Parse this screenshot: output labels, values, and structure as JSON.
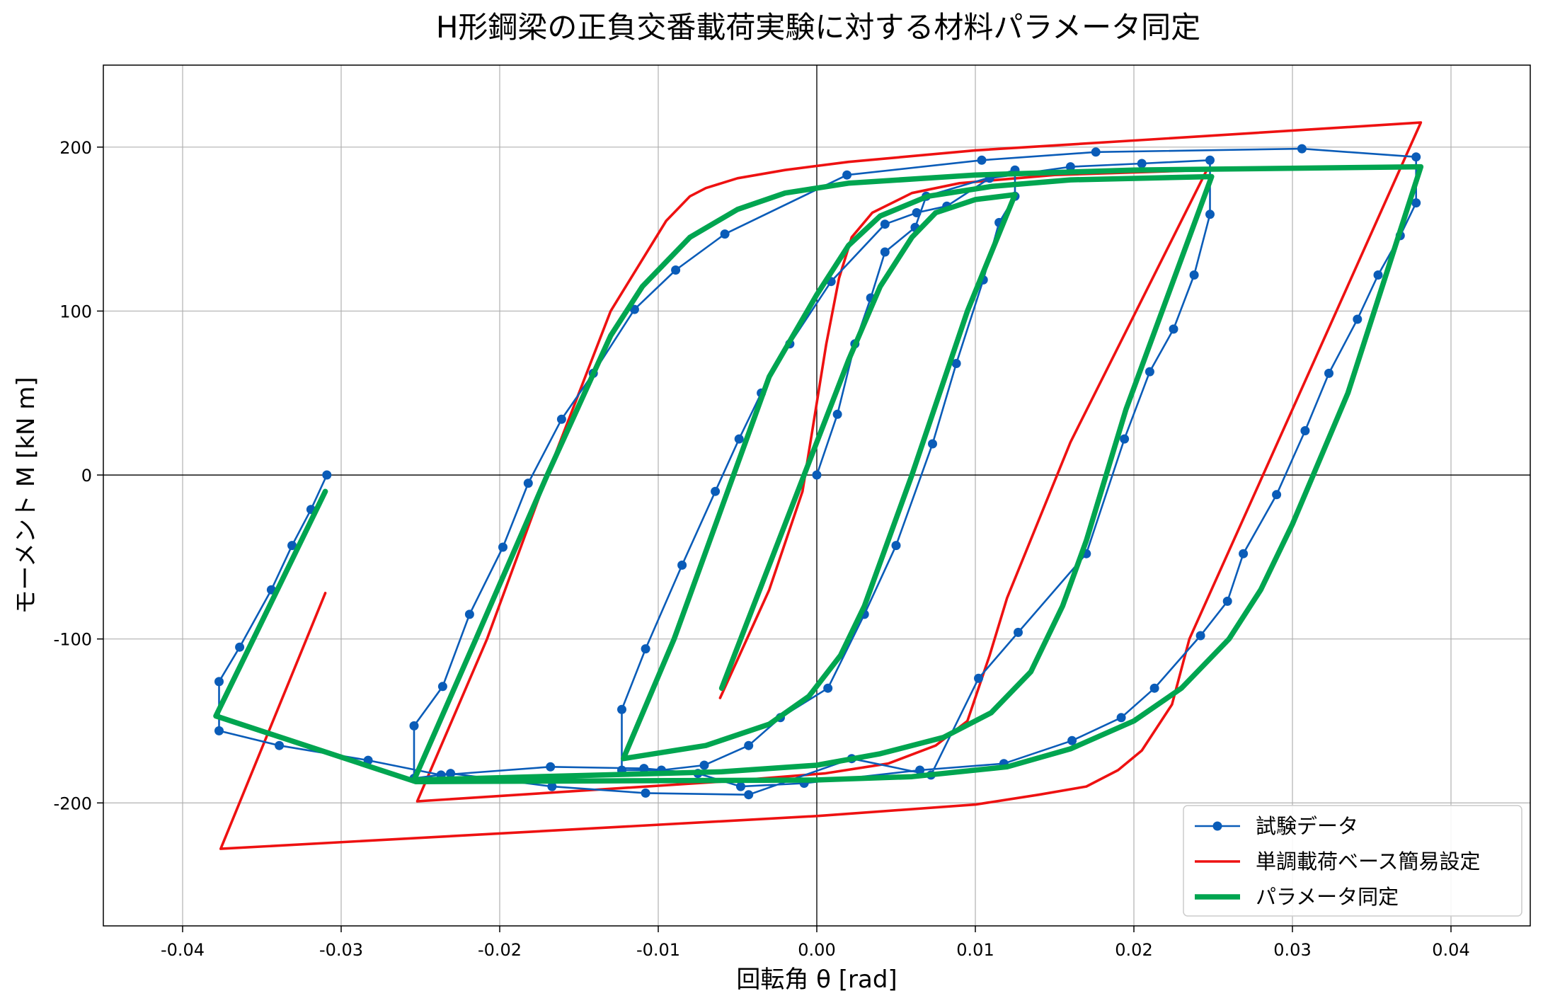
{
  "chart_data": {
    "type": "line",
    "title": "H形鋼梁の正負交番載荷実験に対する材料パラメータ同定",
    "xlabel": "回転角 θ [rad]",
    "ylabel": "モーメント M [kN m]",
    "xlim": [
      -0.045,
      0.045
    ],
    "ylim": [
      -275,
      250
    ],
    "xticks": [
      -0.04,
      -0.03,
      -0.02,
      -0.01,
      0.0,
      0.01,
      0.02,
      0.03,
      0.04
    ],
    "xtick_labels": [
      "-0.04",
      "-0.03",
      "-0.02",
      "-0.01",
      "0.00",
      "0.01",
      "0.02",
      "0.03",
      "0.04"
    ],
    "yticks": [
      -200,
      -100,
      0,
      100,
      200
    ],
    "ytick_labels": [
      "-200",
      "-100",
      "0",
      "100",
      "200"
    ],
    "grid": true,
    "legend_position": "bottom-right",
    "series": [
      {
        "name": "試験データ",
        "color": "#0a5cb8",
        "marker": "circle",
        "points": [
          [
            0.0,
            0
          ],
          [
            0.0013,
            37
          ],
          [
            0.0024,
            80
          ],
          [
            0.0034,
            108
          ],
          [
            0.0043,
            136
          ],
          [
            0.0062,
            151
          ],
          [
            0.0069,
            170
          ],
          [
            0.0125,
            186
          ],
          [
            0.0125,
            170
          ],
          [
            0.0115,
            154
          ],
          [
            0.0105,
            119
          ],
          [
            0.0088,
            68
          ],
          [
            0.0073,
            19
          ],
          [
            0.005,
            -43
          ],
          [
            0.003,
            -85
          ],
          [
            0.0007,
            -130
          ],
          [
            -0.0023,
            -148
          ],
          [
            -0.0043,
            -165
          ],
          [
            -0.0071,
            -177
          ],
          [
            -0.0098,
            -180
          ],
          [
            -0.0123,
            -180
          ],
          [
            -0.0123,
            -143
          ],
          [
            -0.0108,
            -106
          ],
          [
            -0.0085,
            -55
          ],
          [
            -0.0064,
            -10
          ],
          [
            -0.0049,
            22
          ],
          [
            -0.0035,
            50
          ],
          [
            -0.0017,
            80
          ],
          [
            0.0009,
            118
          ],
          [
            0.0043,
            153
          ],
          [
            0.0063,
            160
          ],
          [
            0.0082,
            164
          ],
          [
            0.0109,
            181
          ],
          [
            0.016,
            188
          ],
          [
            0.0205,
            190
          ],
          [
            0.0248,
            192
          ],
          [
            0.0248,
            159
          ],
          [
            0.0238,
            122
          ],
          [
            0.0225,
            89
          ],
          [
            0.021,
            63
          ],
          [
            0.0194,
            22
          ],
          [
            0.017,
            -48
          ],
          [
            0.0127,
            -96
          ],
          [
            0.0102,
            -124
          ],
          [
            0.0072,
            -183
          ],
          [
            0.0022,
            -173
          ],
          [
            -0.0043,
            -195
          ],
          [
            -0.0108,
            -194
          ],
          [
            -0.0167,
            -190
          ],
          [
            -0.0231,
            -182
          ],
          [
            -0.0254,
            -185
          ],
          [
            -0.0254,
            -153
          ],
          [
            -0.0236,
            -129
          ],
          [
            -0.0219,
            -85
          ],
          [
            -0.0198,
            -44
          ],
          [
            -0.0182,
            -5
          ],
          [
            -0.0161,
            34
          ],
          [
            -0.0141,
            62
          ],
          [
            -0.0115,
            101
          ],
          [
            -0.0089,
            125
          ],
          [
            -0.0058,
            147
          ],
          [
            0.0019,
            183
          ],
          [
            0.0104,
            192
          ],
          [
            0.0176,
            197
          ],
          [
            0.0306,
            199
          ],
          [
            0.0378,
            194
          ],
          [
            0.0378,
            166
          ],
          [
            0.0368,
            146
          ],
          [
            0.0354,
            122
          ],
          [
            0.0341,
            95
          ],
          [
            0.0323,
            62
          ],
          [
            0.0308,
            27
          ],
          [
            0.029,
            -12
          ],
          [
            0.0269,
            -48
          ],
          [
            0.0259,
            -77
          ],
          [
            0.0242,
            -98
          ],
          [
            0.0213,
            -130
          ],
          [
            0.0192,
            -148
          ],
          [
            0.0161,
            -162
          ],
          [
            0.0118,
            -176
          ],
          [
            0.0065,
            -180
          ],
          [
            -0.0008,
            -188
          ],
          [
            -0.0048,
            -190
          ],
          [
            -0.0075,
            -182
          ],
          [
            -0.0109,
            -179
          ],
          [
            -0.0168,
            -178
          ],
          [
            -0.0237,
            -183
          ],
          [
            -0.0283,
            -174
          ],
          [
            -0.0339,
            -165
          ],
          [
            -0.0377,
            -156
          ],
          [
            -0.0377,
            -126
          ],
          [
            -0.0364,
            -105
          ],
          [
            -0.0344,
            -70
          ],
          [
            -0.0331,
            -43
          ],
          [
            -0.0319,
            -21
          ],
          [
            -0.0309,
            0
          ]
        ]
      },
      {
        "name": "単調載荷ベース簡易設定",
        "color": "#ee1111",
        "marker": "none",
        "points": [
          [
            -0.0061,
            -136
          ],
          [
            -0.003,
            -70
          ],
          [
            -0.0009,
            -10
          ],
          [
            0.0006,
            80
          ],
          [
            0.0014,
            120
          ],
          [
            0.0022,
            145
          ],
          [
            0.0035,
            160
          ],
          [
            0.006,
            172
          ],
          [
            0.009,
            178
          ],
          [
            0.015,
            183
          ],
          [
            0.0246,
            186
          ],
          [
            0.016,
            20
          ],
          [
            0.012,
            -75
          ],
          [
            0.0109,
            -110
          ],
          [
            0.0095,
            -150
          ],
          [
            0.0075,
            -165
          ],
          [
            0.0045,
            -176
          ],
          [
            0.0005,
            -182
          ],
          [
            -0.006,
            -187
          ],
          [
            -0.0252,
            -199
          ],
          [
            -0.0208,
            -100
          ],
          [
            -0.017,
            0
          ],
          [
            -0.013,
            100
          ],
          [
            -0.0095,
            155
          ],
          [
            -0.008,
            170
          ],
          [
            -0.007,
            175
          ],
          [
            -0.005,
            181
          ],
          [
            -0.002,
            186
          ],
          [
            0.002,
            191
          ],
          [
            0.01,
            198
          ],
          [
            0.02,
            204
          ],
          [
            0.0381,
            215
          ],
          [
            0.03,
            40
          ],
          [
            0.0235,
            -100
          ],
          [
            0.0224,
            -140
          ],
          [
            0.0205,
            -168
          ],
          [
            0.019,
            -180
          ],
          [
            0.017,
            -190
          ],
          [
            0.014,
            -195
          ],
          [
            0.01,
            -201
          ],
          [
            0.0,
            -208
          ],
          [
            -0.0376,
            -228
          ],
          [
            -0.031,
            -72
          ]
        ]
      },
      {
        "name": "パラメータ同定",
        "color": "#00a550",
        "marker": "none",
        "points": [
          [
            -0.006,
            -130
          ],
          [
            -0.004,
            -80
          ],
          [
            -0.002,
            -30
          ],
          [
            0.0,
            20
          ],
          [
            0.002,
            70
          ],
          [
            0.004,
            115
          ],
          [
            0.006,
            145
          ],
          [
            0.0075,
            160
          ],
          [
            0.01,
            168
          ],
          [
            0.0125,
            171
          ],
          [
            0.0095,
            100
          ],
          [
            0.006,
            0
          ],
          [
            0.003,
            -80
          ],
          [
            0.0015,
            -110
          ],
          [
            -0.0005,
            -135
          ],
          [
            -0.003,
            -152
          ],
          [
            -0.007,
            -165
          ],
          [
            -0.0122,
            -173
          ],
          [
            -0.009,
            -100
          ],
          [
            -0.006,
            -20
          ],
          [
            -0.003,
            60
          ],
          [
            0.0,
            110
          ],
          [
            0.002,
            140
          ],
          [
            0.004,
            158
          ],
          [
            0.007,
            170
          ],
          [
            0.011,
            176
          ],
          [
            0.016,
            180
          ],
          [
            0.0249,
            182
          ],
          [
            0.0195,
            40
          ],
          [
            0.017,
            -40
          ],
          [
            0.0155,
            -80
          ],
          [
            0.0135,
            -120
          ],
          [
            0.011,
            -145
          ],
          [
            0.008,
            -160
          ],
          [
            0.004,
            -170
          ],
          [
            0.0,
            -177
          ],
          [
            -0.006,
            -181
          ],
          [
            -0.0254,
            -186
          ],
          [
            -0.0215,
            -100
          ],
          [
            -0.017,
            0
          ],
          [
            -0.013,
            85
          ],
          [
            -0.011,
            115
          ],
          [
            -0.008,
            145
          ],
          [
            -0.005,
            162
          ],
          [
            -0.002,
            172
          ],
          [
            0.002,
            178
          ],
          [
            0.01,
            183
          ],
          [
            0.02,
            186
          ],
          [
            0.0381,
            188
          ],
          [
            0.0335,
            50
          ],
          [
            0.03,
            -30
          ],
          [
            0.028,
            -70
          ],
          [
            0.026,
            -100
          ],
          [
            0.023,
            -130
          ],
          [
            0.02,
            -150
          ],
          [
            0.016,
            -167
          ],
          [
            0.012,
            -178
          ],
          [
            0.006,
            -184
          ],
          [
            0.0,
            -186
          ],
          [
            -0.0253,
            -187
          ],
          [
            -0.0379,
            -147
          ],
          [
            -0.031,
            -10
          ]
        ]
      }
    ]
  }
}
